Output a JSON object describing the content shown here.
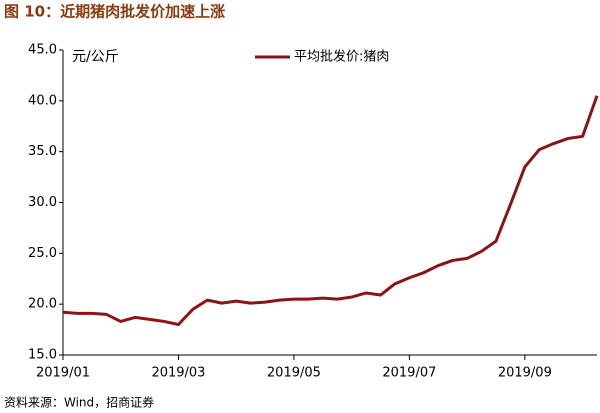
{
  "chart_data": {
    "type": "line",
    "title": "图 10：近期猪肉批发价加速上涨",
    "y_axis_label": "元/公斤",
    "source": "资料来源：Wind，招商证券",
    "categories": [
      "2019/01",
      null,
      null,
      null,
      null,
      null,
      null,
      null,
      "2019/03",
      null,
      null,
      null,
      null,
      null,
      null,
      null,
      "2019/05",
      null,
      null,
      null,
      null,
      null,
      null,
      null,
      "2019/07",
      null,
      null,
      null,
      null,
      null,
      null,
      null,
      "2019/09",
      null,
      null,
      null,
      null,
      null
    ],
    "series": [
      {
        "name": "平均批发价:猪肉",
        "color": "#8b1414",
        "values": [
          19.2,
          19.1,
          19.1,
          19.0,
          18.3,
          18.7,
          18.5,
          18.3,
          18.0,
          19.5,
          20.4,
          20.1,
          20.3,
          20.1,
          20.2,
          20.4,
          20.5,
          20.5,
          20.6,
          20.5,
          20.7,
          21.1,
          20.9,
          22.0,
          22.6,
          23.1,
          23.8,
          24.3,
          24.5,
          25.2,
          26.2,
          29.8,
          33.5,
          35.2,
          35.8,
          36.3,
          36.5,
          40.5
        ]
      }
    ],
    "ylim": [
      15,
      45
    ],
    "yticks": [
      {
        "value": 15,
        "label": "15.0"
      },
      {
        "value": 20,
        "label": "20.0"
      },
      {
        "value": 25,
        "label": "25.0"
      },
      {
        "value": 30,
        "label": "30.0"
      },
      {
        "value": 35,
        "label": "35.0"
      },
      {
        "value": 40,
        "label": "40.0"
      },
      {
        "value": 45,
        "label": "45.0"
      }
    ],
    "legend": "top"
  }
}
